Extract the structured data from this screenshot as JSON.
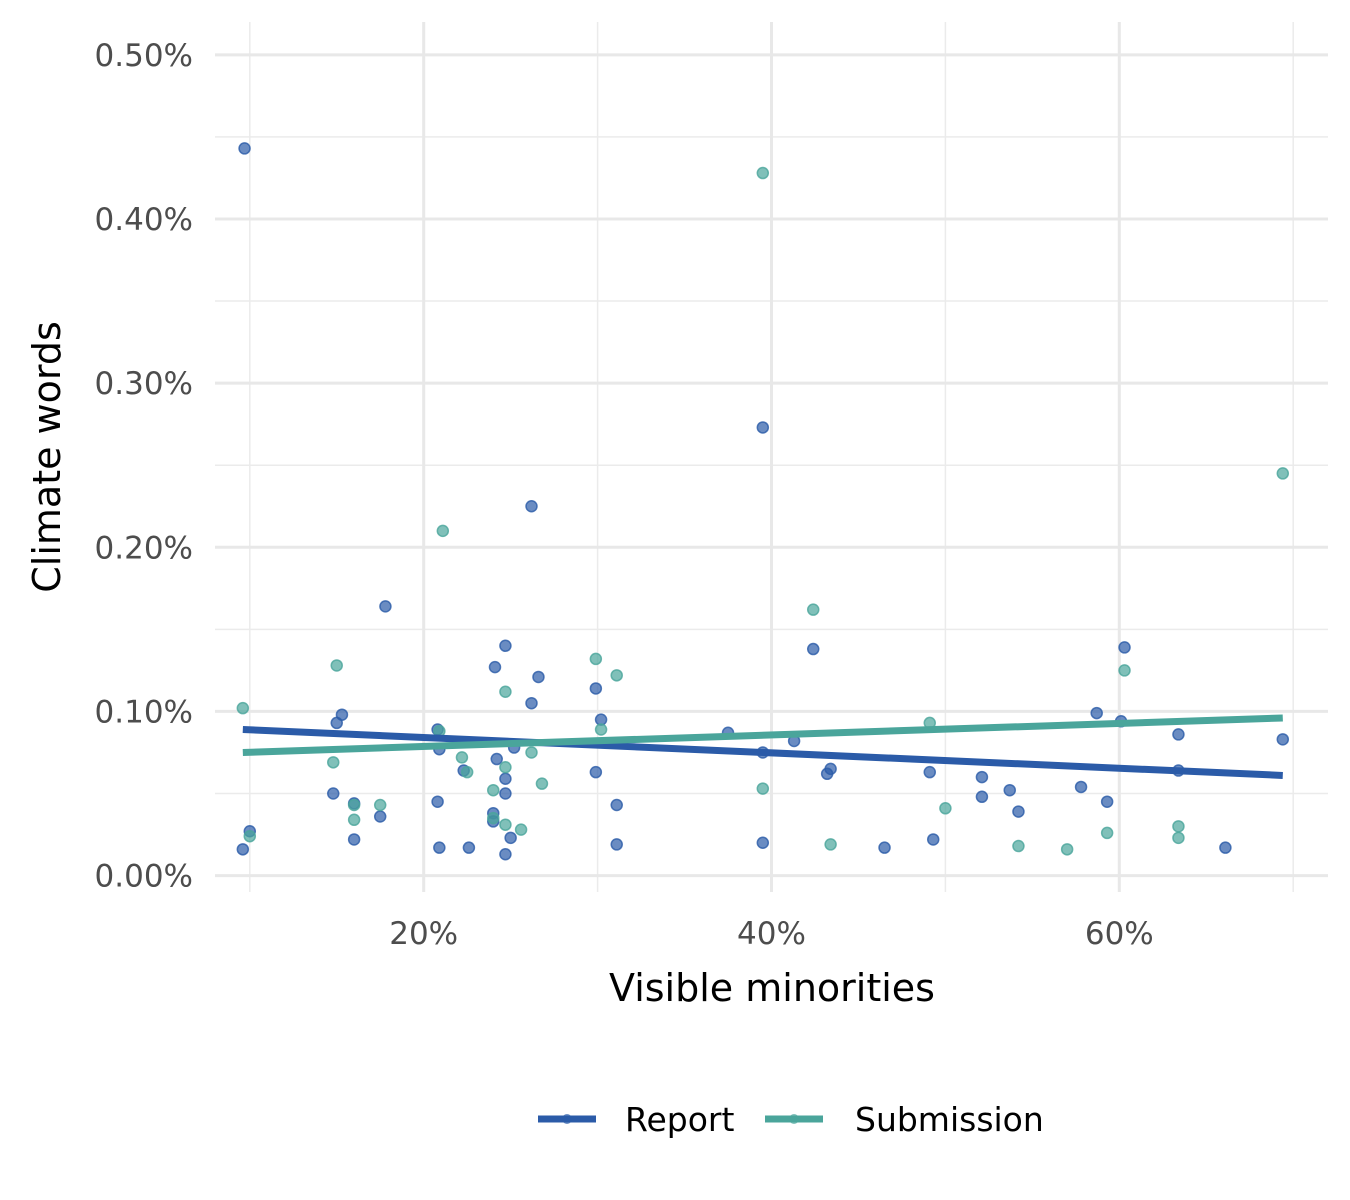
{
  "chart_data": {
    "type": "scatter",
    "xlabel": "Visible minorities",
    "ylabel": "Climate words",
    "xlim": [
      0.08,
      0.72
    ],
    "ylim": [
      -0.0001,
      0.0052
    ],
    "x_ticks": [
      0.2,
      0.4,
      0.6
    ],
    "x_tick_labels": [
      "20%",
      "40%",
      "60%"
    ],
    "x_minor_ticks": [
      0.1,
      0.3,
      0.5,
      0.7
    ],
    "y_ticks": [
      0.0,
      0.001,
      0.002,
      0.003,
      0.004,
      0.005
    ],
    "y_tick_labels": [
      "0.00%",
      "0.10%",
      "0.20%",
      "0.30%",
      "0.40%",
      "0.50%"
    ],
    "y_minor_ticks": [
      0.0005,
      0.0015,
      0.0025,
      0.0035,
      0.0045
    ],
    "grid": true,
    "legend_position": "bottom",
    "series": [
      {
        "name": "Report",
        "color": "#2b5ba8",
        "points": [
          [
            0.097,
            0.00443
          ],
          [
            0.395,
            0.00273
          ],
          [
            0.262,
            0.00225
          ],
          [
            0.178,
            0.00164
          ],
          [
            0.247,
            0.0014
          ],
          [
            0.424,
            0.00138
          ],
          [
            0.603,
            0.00139
          ],
          [
            0.241,
            0.00127
          ],
          [
            0.266,
            0.00121
          ],
          [
            0.299,
            0.00114
          ],
          [
            0.262,
            0.00105
          ],
          [
            0.153,
            0.00098
          ],
          [
            0.15,
            0.00093
          ],
          [
            0.302,
            0.00095
          ],
          [
            0.587,
            0.00099
          ],
          [
            0.601,
            0.00094
          ],
          [
            0.208,
            0.00089
          ],
          [
            0.375,
            0.00087
          ],
          [
            0.634,
            0.00086
          ],
          [
            0.694,
            0.00083
          ],
          [
            0.413,
            0.00082
          ],
          [
            0.252,
            0.00078
          ],
          [
            0.209,
            0.00077
          ],
          [
            0.242,
            0.00071
          ],
          [
            0.395,
            0.00075
          ],
          [
            0.223,
            0.00064
          ],
          [
            0.299,
            0.00063
          ],
          [
            0.434,
            0.00065
          ],
          [
            0.432,
            0.00062
          ],
          [
            0.491,
            0.00063
          ],
          [
            0.521,
            0.0006
          ],
          [
            0.634,
            0.00064
          ],
          [
            0.247,
            0.00059
          ],
          [
            0.148,
            0.0005
          ],
          [
            0.247,
            0.0005
          ],
          [
            0.537,
            0.00052
          ],
          [
            0.578,
            0.00054
          ],
          [
            0.208,
            0.00045
          ],
          [
            0.16,
            0.00044
          ],
          [
            0.521,
            0.00048
          ],
          [
            0.593,
            0.00045
          ],
          [
            0.311,
            0.00043
          ],
          [
            0.175,
            0.00036
          ],
          [
            0.24,
            0.00038
          ],
          [
            0.24,
            0.00033
          ],
          [
            0.542,
            0.00039
          ],
          [
            0.25,
            0.00023
          ],
          [
            0.16,
            0.00022
          ],
          [
            0.1,
            0.00027
          ],
          [
            0.395,
            0.0002
          ],
          [
            0.311,
            0.00019
          ],
          [
            0.493,
            0.00022
          ],
          [
            0.209,
            0.00017
          ],
          [
            0.226,
            0.00017
          ],
          [
            0.465,
            0.00017
          ],
          [
            0.661,
            0.00017
          ],
          [
            0.096,
            0.00016
          ],
          [
            0.247,
            0.00013
          ]
        ]
      },
      {
        "name": "Submission",
        "color": "#4aa59b",
        "points": [
          [
            0.395,
            0.00428
          ],
          [
            0.694,
            0.00245
          ],
          [
            0.211,
            0.0021
          ],
          [
            0.424,
            0.00162
          ],
          [
            0.15,
            0.00128
          ],
          [
            0.299,
            0.00132
          ],
          [
            0.311,
            0.00122
          ],
          [
            0.603,
            0.00125
          ],
          [
            0.247,
            0.00112
          ],
          [
            0.096,
            0.00102
          ],
          [
            0.491,
            0.00093
          ],
          [
            0.302,
            0.00089
          ],
          [
            0.209,
            0.00088
          ],
          [
            0.222,
            0.00072
          ],
          [
            0.262,
            0.00075
          ],
          [
            0.148,
            0.00069
          ],
          [
            0.247,
            0.00066
          ],
          [
            0.225,
            0.00063
          ],
          [
            0.268,
            0.00056
          ],
          [
            0.395,
            0.00053
          ],
          [
            0.24,
            0.00052
          ],
          [
            0.16,
            0.00043
          ],
          [
            0.175,
            0.00043
          ],
          [
            0.16,
            0.00034
          ],
          [
            0.247,
            0.00031
          ],
          [
            0.256,
            0.00028
          ],
          [
            0.24,
            0.00035
          ],
          [
            0.1,
            0.00024
          ],
          [
            0.593,
            0.00026
          ],
          [
            0.634,
            0.0003
          ],
          [
            0.634,
            0.00023
          ],
          [
            0.5,
            0.00041
          ],
          [
            0.434,
            0.00019
          ],
          [
            0.542,
            0.00018
          ],
          [
            0.57,
            0.00016
          ]
        ],
        "trend": [
          [
            0.096,
            0.00075
          ],
          [
            0.694,
            0.00096
          ]
        ]
      }
    ],
    "report_trend": [
      [
        0.096,
        0.00089
      ],
      [
        0.694,
        0.00061
      ]
    ]
  }
}
